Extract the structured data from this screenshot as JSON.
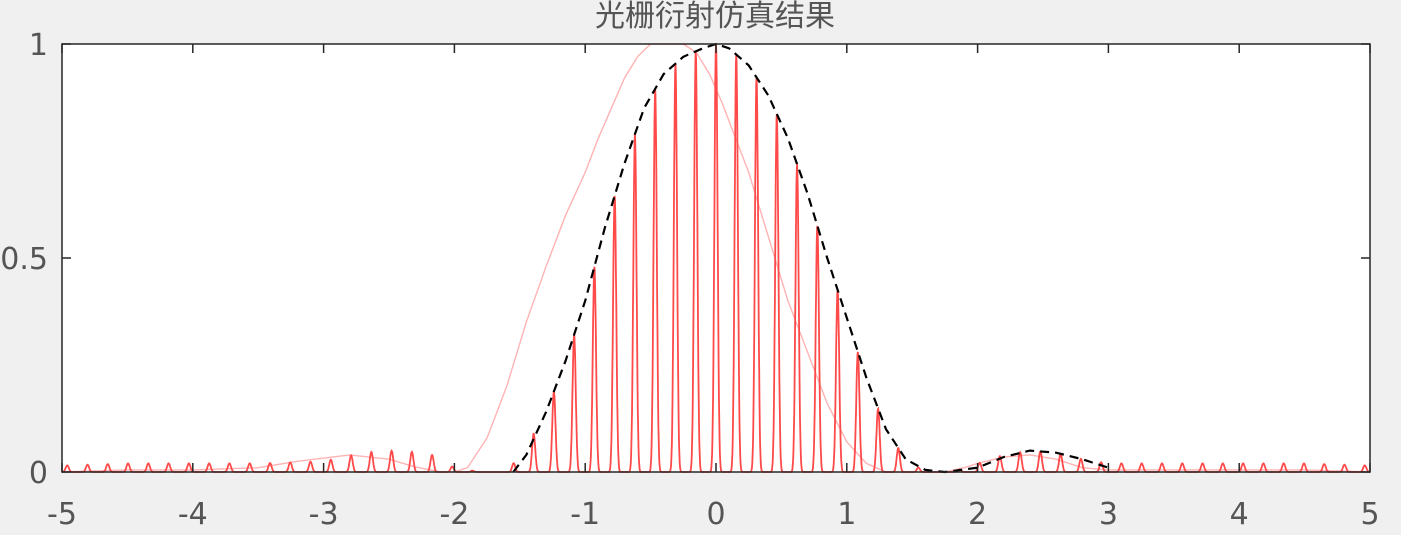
{
  "chart_data": {
    "type": "line",
    "title": "光栅衍射仿真结果",
    "xlabel": "",
    "ylabel": "",
    "xlim": [
      -5,
      5
    ],
    "ylim": [
      0,
      1
    ],
    "xticks": [
      "-5",
      "-4",
      "-3",
      "-2",
      "-1",
      "0",
      "1",
      "2",
      "3",
      "4",
      "5"
    ],
    "yticks": [
      "0",
      "0.5",
      "1"
    ],
    "grid": false,
    "legend": "none",
    "series": [
      {
        "style": "solid-thin-light",
        "color": "#ffb3b3",
        "x": [
          -5.0,
          -4.5,
          -4.0,
          -3.5,
          -3.2,
          -2.8,
          -2.5,
          -2.3,
          -2.1,
          -2.0,
          -1.9,
          -1.75,
          -1.6,
          -1.45,
          -1.3,
          -1.15,
          -1.0,
          -0.9,
          -0.8,
          -0.7,
          -0.6,
          -0.5,
          -0.45,
          -0.35,
          -0.25,
          -0.15,
          -0.05,
          0.05,
          0.15,
          0.25,
          0.35,
          0.45,
          0.55,
          0.7,
          0.85,
          1.0,
          1.15,
          1.3,
          1.45,
          1.6,
          1.75,
          1.9,
          2.0,
          2.2,
          2.4,
          2.6,
          2.8,
          3.0,
          3.2,
          3.5,
          4.0,
          4.5,
          5.0
        ],
        "y": [
          0.0,
          0.005,
          0.005,
          0.01,
          0.025,
          0.04,
          0.03,
          0.012,
          0.0,
          0.0,
          0.01,
          0.08,
          0.2,
          0.35,
          0.48,
          0.6,
          0.7,
          0.78,
          0.85,
          0.92,
          0.97,
          1.0,
          1.0,
          1.0,
          1.0,
          0.98,
          0.93,
          0.86,
          0.78,
          0.7,
          0.6,
          0.5,
          0.4,
          0.28,
          0.16,
          0.07,
          0.02,
          0.0,
          0.0,
          0.0,
          0.0,
          0.01,
          0.02,
          0.035,
          0.04,
          0.03,
          0.01,
          0.005,
          0.005,
          0.005,
          0.005,
          0.005,
          0.0
        ]
      },
      {
        "style": "solid-oscillating",
        "color": "#ff4a4a",
        "fringe_period": 0.155,
        "fringe_sharpness": 8,
        "x": [
          -5.0,
          -4.5,
          -4.0,
          -3.5,
          -3.0,
          -2.7,
          -2.5,
          -2.2,
          -2.0,
          -1.8,
          -1.6,
          -1.45,
          -1.3,
          -1.15,
          -1.0,
          -0.85,
          -0.7,
          -0.55,
          -0.4,
          -0.25,
          -0.1,
          0.0,
          0.1,
          0.25,
          0.4,
          0.55,
          0.7,
          0.85,
          1.0,
          1.15,
          1.3,
          1.45,
          1.6,
          1.8,
          2.0,
          2.2,
          2.4,
          2.6,
          2.8,
          3.0,
          3.2,
          3.5,
          4.0,
          4.5,
          5.0
        ],
        "y": [
          0.015,
          0.02,
          0.02,
          0.02,
          0.025,
          0.045,
          0.05,
          0.045,
          0.01,
          0.0,
          0.0,
          0.06,
          0.14,
          0.26,
          0.4,
          0.57,
          0.72,
          0.85,
          0.93,
          0.97,
          0.99,
          1.0,
          0.99,
          0.95,
          0.88,
          0.78,
          0.65,
          0.5,
          0.36,
          0.22,
          0.1,
          0.03,
          0.0,
          0.0,
          0.02,
          0.04,
          0.05,
          0.045,
          0.03,
          0.02,
          0.02,
          0.02,
          0.02,
          0.02,
          0.015
        ]
      },
      {
        "style": "dashed",
        "color": "#000000",
        "x": [
          -1.55,
          -1.45,
          -1.3,
          -1.15,
          -1.0,
          -0.85,
          -0.7,
          -0.55,
          -0.4,
          -0.25,
          -0.1,
          0.0,
          0.1,
          0.25,
          0.4,
          0.55,
          0.7,
          0.85,
          1.0,
          1.15,
          1.3,
          1.45,
          1.6,
          1.75,
          2.0,
          2.2,
          2.4,
          2.6,
          2.8,
          3.0
        ],
        "y": [
          0.0,
          0.04,
          0.14,
          0.26,
          0.4,
          0.57,
          0.72,
          0.85,
          0.93,
          0.97,
          0.99,
          1.0,
          0.99,
          0.95,
          0.88,
          0.78,
          0.65,
          0.5,
          0.36,
          0.22,
          0.1,
          0.03,
          0.005,
          0.0,
          0.01,
          0.035,
          0.05,
          0.045,
          0.03,
          0.01
        ]
      }
    ]
  }
}
